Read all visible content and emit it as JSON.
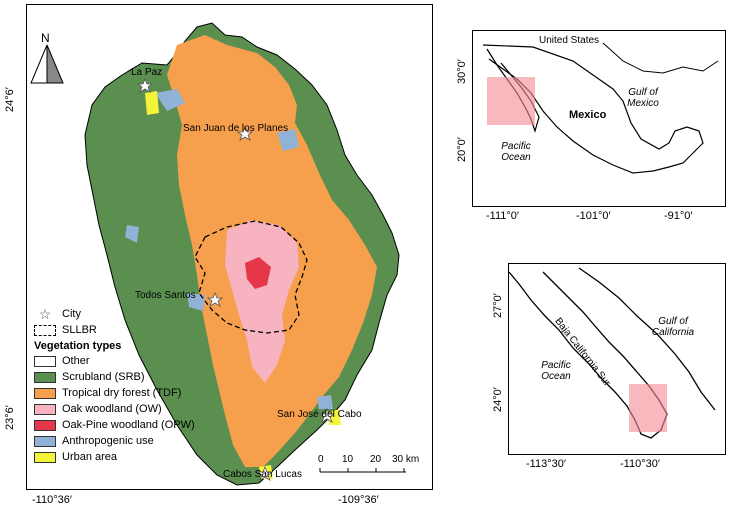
{
  "main_map": {
    "north_label": "N",
    "cities": [
      "La Paz",
      "San Juan de los Planes",
      "Todos Santos",
      "San José del Cabo",
      "Cabos San Lucas"
    ],
    "lat_labels": [
      "24°6′",
      "23°6′"
    ],
    "lon_labels": [
      "-110°36′",
      "-109°36′"
    ],
    "scale": {
      "ticks": [
        "0",
        "10",
        "20",
        "30 km"
      ]
    }
  },
  "legend": {
    "city": "City",
    "sllbr": "SLLBR",
    "title": "Vegetation types",
    "items": [
      {
        "label": "Other",
        "color": "#ffffff"
      },
      {
        "label": "Scrubland (SRB)",
        "color": "#5a8f4f"
      },
      {
        "label": "Tropical dry forest (TDF)",
        "color": "#f6a04d"
      },
      {
        "label": "Oak woodland (OW)",
        "color": "#f7b3bf"
      },
      {
        "label": "Oak-Pine woodland (OPW)",
        "color": "#e6364a"
      },
      {
        "label": "Anthropogenic use",
        "color": "#8fb2d6"
      },
      {
        "label": "Urban area",
        "color": "#f4f53a"
      }
    ]
  },
  "inset_mexico": {
    "labels": {
      "us": "United States",
      "gulf": "Gulf of Mexico",
      "mexico": "Mexico",
      "pacific": "Pacific Ocean"
    },
    "lat_labels": [
      "30°0′",
      "20°0′"
    ],
    "lon_labels": [
      "-111°0′",
      "-101°0′",
      "-91°0′"
    ]
  },
  "inset_baja": {
    "labels": {
      "bcs": "Baja California Sur",
      "gulf": "Gulf of California",
      "pacific": "Pacific Ocean"
    },
    "lat_labels": [
      "27°0′",
      "24°0′"
    ],
    "lon_labels": [
      "-113°30′",
      "-110°30′"
    ]
  }
}
